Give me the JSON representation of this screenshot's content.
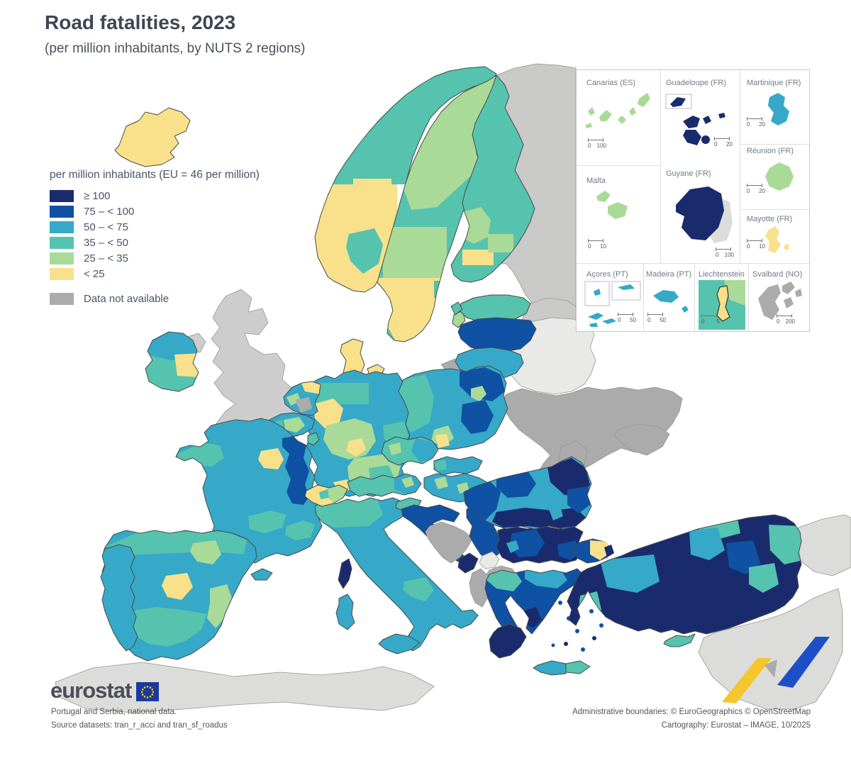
{
  "title": "Road fatalities, 2023",
  "subtitle": "(per million inhabitants, by NUTS 2 regions)",
  "legend": {
    "title": "per million inhabitants (EU = 46 per million)",
    "classes": [
      {
        "label": "≥ 100",
        "key": "q6"
      },
      {
        "label": "75 – < 100",
        "key": "q5"
      },
      {
        "label": "50 – < 75",
        "key": "q4"
      },
      {
        "label": "35 – < 50",
        "key": "q3"
      },
      {
        "label": "25 – < 35",
        "key": "q2"
      },
      {
        "label": "< 25",
        "key": "q1"
      }
    ],
    "no_data_label": "Data not available",
    "no_data_key": "nd"
  },
  "colors": {
    "q6": "#1a2b6d",
    "q5": "#0f51a3",
    "q4": "#35a9c7",
    "q3": "#55c3ae",
    "q2": "#a9da97",
    "q1": "#f8e18a",
    "nd": "#ababab",
    "uk": "#cdcdcd",
    "lt": "#e9e9e7",
    "me": "#dcdcda",
    "ru": "#c9c9c7",
    "sea": "#ffffff",
    "accentBlue": "#1d50c8",
    "accentYellow": "#f5c52e",
    "euflag": "#1b3a9e"
  },
  "insets": [
    {
      "label": "Canarias (ES)",
      "scale_from": "0",
      "scale_to": "100"
    },
    {
      "label": "Guadeloupe (FR)",
      "scale_from": "0",
      "scale_to": "20"
    },
    {
      "label": "Martinique (FR)",
      "scale_from": "0",
      "scale_to": "20"
    },
    {
      "label": "Malta",
      "scale_from": "0",
      "scale_to": "10"
    },
    {
      "label": "Guyane (FR)",
      "scale_from": "0",
      "scale_to": "100"
    },
    {
      "label": "Réunion (FR)",
      "scale_from": "0",
      "scale_to": "20"
    },
    {
      "label": "Mayotte (FR)",
      "scale_from": "0",
      "scale_to": "10"
    },
    {
      "label": "Açores (PT)",
      "scale_from": "0",
      "scale_to": "50"
    },
    {
      "label": "Madeira (PT)",
      "scale_from": "0",
      "scale_to": "50"
    },
    {
      "label": "Liechtenstein",
      "scale_from": "0",
      "scale_to": "5"
    },
    {
      "label": "Svalbard (NO)",
      "scale_from": "0",
      "scale_to": "200"
    }
  ],
  "footer": {
    "logo_text": "eurostat",
    "note1": "Portugal and Serbia, national data.",
    "note2": "Source datasets: tran_r_acci and tran_sf_roadus",
    "right1": "Administrative boundaries: © EuroGeographics © OpenStreetMap",
    "right2": "Cartography: Eurostat – IMAGE, 10/2025"
  }
}
